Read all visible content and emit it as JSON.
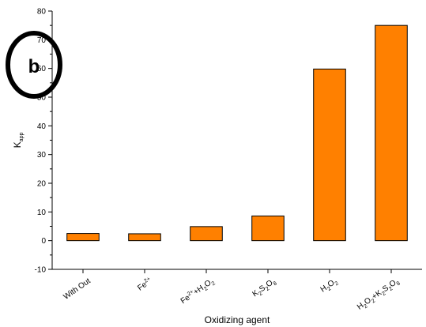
{
  "chart_data": {
    "type": "bar",
    "categories": [
      {
        "id": "without",
        "parts": [
          {
            "t": "With Out"
          }
        ]
      },
      {
        "id": "fe2",
        "parts": [
          {
            "t": "Fe"
          },
          {
            "t": "2+",
            "s": "sup"
          }
        ]
      },
      {
        "id": "fe2-h2o2",
        "parts": [
          {
            "t": "Fe"
          },
          {
            "t": "2+",
            "s": "sup"
          },
          {
            "t": "+H"
          },
          {
            "t": "2",
            "s": "sub"
          },
          {
            "t": "O"
          },
          {
            "t": "2",
            "s": "sub"
          }
        ]
      },
      {
        "id": "k2s2o8",
        "parts": [
          {
            "t": "K"
          },
          {
            "t": "2",
            "s": "sub"
          },
          {
            "t": "S"
          },
          {
            "t": "2",
            "s": "sub"
          },
          {
            "t": "O"
          },
          {
            "t": "8",
            "s": "sub"
          }
        ]
      },
      {
        "id": "h2o2",
        "parts": [
          {
            "t": "H"
          },
          {
            "t": "2",
            "s": "sub"
          },
          {
            "t": "O"
          },
          {
            "t": "2",
            "s": "sub"
          }
        ]
      },
      {
        "id": "h2o2-k2s2o8",
        "parts": [
          {
            "t": "H"
          },
          {
            "t": "2",
            "s": "sub"
          },
          {
            "t": "O"
          },
          {
            "t": "2",
            "s": "sub"
          },
          {
            "t": "+K"
          },
          {
            "t": "2",
            "s": "sub"
          },
          {
            "t": "S"
          },
          {
            "t": "2",
            "s": "sub"
          },
          {
            "t": "O"
          },
          {
            "t": "8",
            "s": "sub"
          }
        ]
      }
    ],
    "values": [
      2.5,
      2.4,
      4.9,
      8.6,
      59.8,
      75.0
    ],
    "xlabel": "Oxidizing agent",
    "ylabel": {
      "main": "K",
      "sub": "app"
    },
    "ylim": [
      -10,
      80
    ],
    "yticks": [
      "-10",
      "0",
      "10",
      "20",
      "30",
      "40",
      "50",
      "60",
      "70",
      "80"
    ],
    "bar_color": "#ff8000",
    "bar_edge_color": "#000000",
    "grid": false,
    "panel_label": "b"
  }
}
